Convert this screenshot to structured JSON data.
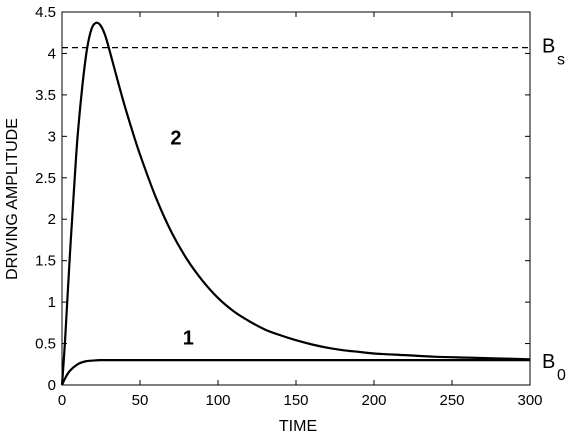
{
  "chart_data": {
    "type": "line",
    "title": "",
    "xlabel": "TIME",
    "ylabel": "DRIVING AMPLITUDE",
    "xlim": [
      0,
      300
    ],
    "ylim": [
      0,
      4.5
    ],
    "xticks": [
      0,
      50,
      100,
      150,
      200,
      250,
      300
    ],
    "yticks": [
      0,
      0.5,
      1,
      1.5,
      2,
      2.5,
      3,
      3.5,
      4,
      4.5
    ],
    "ytick_labels": [
      "0",
      "0.5",
      "1",
      "1.5",
      "2",
      "2.5",
      "3",
      "3.5",
      "4",
      "4.5"
    ],
    "grid": false,
    "series": [
      {
        "name": "1",
        "x": [
          0,
          2,
          5,
          10,
          15,
          20,
          25,
          30,
          40,
          50,
          75,
          100,
          150,
          200,
          250,
          300
        ],
        "y": [
          0,
          0.08,
          0.17,
          0.25,
          0.285,
          0.295,
          0.3,
          0.3,
          0.3,
          0.3,
          0.3,
          0.3,
          0.3,
          0.3,
          0.3,
          0.3
        ]
      },
      {
        "name": "2",
        "x": [
          0,
          2,
          5,
          8,
          10,
          13,
          16,
          19,
          22,
          25,
          28,
          32,
          36,
          40,
          45,
          50,
          60,
          70,
          80,
          90,
          100,
          110,
          120,
          130,
          140,
          150,
          160,
          170,
          180,
          190,
          200,
          220,
          240,
          260,
          280,
          300
        ],
        "y": [
          0,
          0.55,
          1.55,
          2.45,
          3.0,
          3.6,
          4.05,
          4.3,
          4.37,
          4.33,
          4.2,
          3.93,
          3.65,
          3.38,
          3.07,
          2.78,
          2.27,
          1.85,
          1.52,
          1.26,
          1.05,
          0.89,
          0.77,
          0.67,
          0.6,
          0.54,
          0.49,
          0.45,
          0.42,
          0.4,
          0.38,
          0.36,
          0.34,
          0.33,
          0.32,
          0.31
        ]
      }
    ],
    "reference_lines": [
      {
        "label": "B",
        "subscript": "s",
        "y": 4.07,
        "style": "dashed"
      },
      {
        "label": "B",
        "subscript": "0",
        "y": 0.3,
        "style": "none"
      }
    ],
    "annotations": [
      {
        "text": "2",
        "x": 73,
        "y": 2.9
      },
      {
        "text": "1",
        "x": 81,
        "y": 0.49
      }
    ]
  }
}
